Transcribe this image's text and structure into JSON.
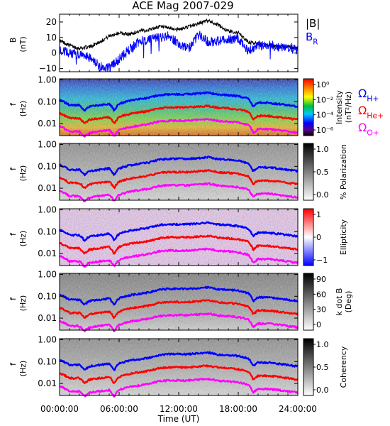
{
  "title": "ACE Mag 2007-029",
  "x_axis": {
    "label": "Time (UT)",
    "tick_labels": [
      "00:00:00",
      "06:00:00",
      "12:00:00",
      "18:00:00",
      "24:00:00"
    ],
    "range_hours": [
      0,
      24
    ]
  },
  "legend_panel1": {
    "total": "|B|",
    "radial": "B",
    "radial_sub": "R"
  },
  "legend_freq": [
    {
      "symbol": "Ω",
      "sub": "H+",
      "color": "#0000ff"
    },
    {
      "symbol": "Ω",
      "sub": "He+",
      "color": "#ff0000"
    },
    {
      "symbol": "Ω",
      "sub": "O+",
      "color": "#ff00ff"
    }
  ],
  "colors": {
    "total_field": "#000000",
    "radial_field": "#0000ff",
    "h_plus": "#0000ff",
    "he_plus": "#ff0000",
    "o_plus": "#ff00ff"
  },
  "chart_data": [
    {
      "type": "line",
      "ylabel": "B",
      "yunit": "(nT)",
      "ylim": [
        -12,
        25
      ],
      "y_tick_labels": [
        "20",
        "10",
        "0",
        "−10"
      ],
      "series": [
        {
          "name": "|B|",
          "x": [
            0,
            1,
            2,
            3,
            4,
            5,
            6,
            7,
            8,
            9,
            10,
            11,
            12,
            13,
            14,
            15,
            16,
            17,
            18,
            19,
            20,
            21,
            22,
            23,
            24
          ],
          "y": [
            8,
            5,
            3,
            4,
            7,
            11,
            13,
            12,
            14,
            15,
            17,
            16,
            15,
            17,
            19,
            21,
            18,
            14,
            13,
            7,
            6,
            5,
            4,
            4,
            3
          ]
        },
        {
          "name": "B_R",
          "x": [
            0,
            1,
            2,
            3,
            4,
            5,
            6,
            7,
            8,
            9,
            10,
            11,
            12,
            13,
            14,
            15,
            16,
            17,
            18,
            19,
            20,
            21,
            22,
            23,
            24
          ],
          "y": [
            2,
            0,
            -1,
            -3,
            -8,
            -10,
            -4,
            2,
            7,
            9,
            10,
            11,
            6,
            3,
            12,
            7,
            8,
            9,
            9,
            1,
            5,
            5,
            4,
            4,
            2
          ]
        }
      ]
    },
    {
      "type": "heatmap",
      "ylabel": "f",
      "yunit": "(Hz)",
      "y_tick_labels": [
        "1.00",
        "0.10",
        "0.01"
      ],
      "colorbar": {
        "label": "Intensity",
        "unit": "(nT²/Hz)",
        "tick_labels": [
          "10⁰",
          "10⁻²",
          "10⁻⁴",
          "10⁻⁶"
        ],
        "scale": "log"
      },
      "gyrofrequency_lines": {
        "x": [
          0,
          1,
          2,
          2.5,
          3,
          4,
          5,
          5.5,
          6,
          7,
          8,
          9,
          10,
          11,
          12,
          13,
          14,
          15,
          16,
          17,
          18,
          19,
          19.5,
          20,
          21,
          22,
          23,
          24
        ],
        "h_plus_hz": [
          0.12,
          0.07,
          0.07,
          0.04,
          0.06,
          0.07,
          0.08,
          0.04,
          0.08,
          0.11,
          0.13,
          0.15,
          0.2,
          0.22,
          0.22,
          0.22,
          0.24,
          0.26,
          0.21,
          0.2,
          0.18,
          0.14,
          0.06,
          0.09,
          0.09,
          0.08,
          0.07,
          0.06
        ]
      }
    },
    {
      "type": "heatmap",
      "ylabel": "f",
      "yunit": "(Hz)",
      "y_tick_labels": [
        "1.00",
        "0.10",
        "0.01"
      ],
      "colorbar": {
        "label": "% Polarization",
        "tick_labels": [
          "1.0",
          "0.5",
          "0.0"
        ],
        "scale": "linear",
        "range": [
          0,
          1
        ]
      }
    },
    {
      "type": "heatmap",
      "ylabel": "f",
      "yunit": "(Hz)",
      "y_tick_labels": [
        "1.00",
        "0.10",
        "0.01"
      ],
      "colorbar": {
        "label": "Ellipticity",
        "tick_labels": [
          "1",
          "0",
          "−1"
        ],
        "scale": "linear",
        "range": [
          -1,
          1
        ]
      }
    },
    {
      "type": "heatmap",
      "ylabel": "f",
      "yunit": "(Hz)",
      "y_tick_labels": [
        "1.00",
        "0.10",
        "0.01"
      ],
      "colorbar": {
        "label": "k dot B",
        "unit": "(Deg)",
        "tick_labels": [
          "90",
          "60",
          "30",
          "0"
        ],
        "scale": "linear",
        "range": [
          0,
          90
        ]
      }
    },
    {
      "type": "heatmap",
      "ylabel": "f",
      "yunit": "(Hz)",
      "y_tick_labels": [
        "1.00",
        "0.10",
        "0.01"
      ],
      "colorbar": {
        "label": "Coherency",
        "tick_labels": [
          "1.0",
          "0.5",
          "0.0"
        ],
        "scale": "linear",
        "range": [
          0,
          1
        ]
      }
    }
  ]
}
